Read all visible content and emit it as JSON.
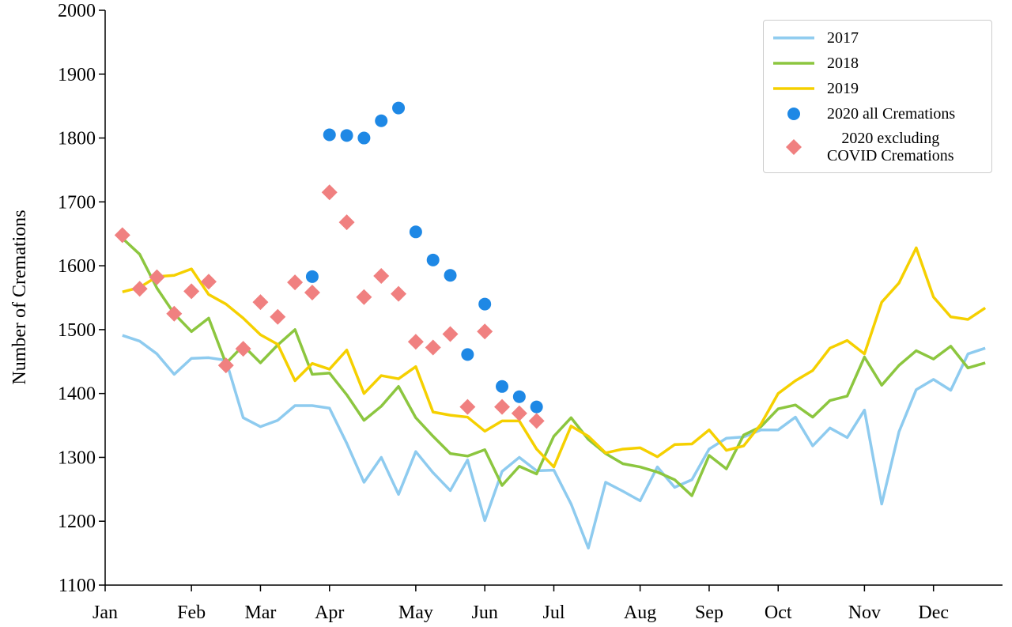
{
  "chart_data": {
    "type": "line",
    "ylabel": "Number of Cremations",
    "xlim": [
      0,
      52
    ],
    "ylim": [
      1100,
      2000
    ],
    "yticks": [
      1100,
      1200,
      1300,
      1400,
      1500,
      1600,
      1700,
      1800,
      1900,
      2000
    ],
    "xticks": [
      {
        "value": 0,
        "label": "Jan"
      },
      {
        "value": 5,
        "label": "Feb"
      },
      {
        "value": 9,
        "label": "Mar"
      },
      {
        "value": 13,
        "label": "Apr"
      },
      {
        "value": 18,
        "label": "May"
      },
      {
        "value": 22,
        "label": "Jun"
      },
      {
        "value": 26,
        "label": "Jul"
      },
      {
        "value": 31,
        "label": "Aug"
      },
      {
        "value": 35,
        "label": "Sep"
      },
      {
        "value": 39,
        "label": "Oct"
      },
      {
        "value": 44,
        "label": "Nov"
      },
      {
        "value": 48,
        "label": "Dec"
      }
    ],
    "legend": "upper right",
    "series": [
      {
        "name": "2017",
        "color": "#8ecbef",
        "style": "line",
        "x": [
          1,
          2,
          3,
          4,
          5,
          6,
          7,
          8,
          9,
          10,
          11,
          12,
          13,
          14,
          15,
          16,
          17,
          18,
          19,
          20,
          21,
          22,
          23,
          24,
          25,
          26,
          27,
          28,
          29,
          30,
          31,
          32,
          33,
          34,
          35,
          36,
          37,
          38,
          39,
          40,
          41,
          42,
          43,
          44,
          45,
          46,
          47,
          48,
          49,
          50,
          51
        ],
        "values": [
          1491,
          1482,
          1462,
          1430,
          1455,
          1456,
          1452,
          1362,
          1348,
          1358,
          1381,
          1381,
          1377,
          1322,
          1261,
          1300,
          1242,
          1309,
          1276,
          1248,
          1296,
          1201,
          1278,
          1300,
          1279,
          1280,
          1227,
          1158,
          1261,
          1247,
          1232,
          1285,
          1253,
          1265,
          1313,
          1330,
          1332,
          1343,
          1343,
          1363,
          1318,
          1346,
          1331,
          1374,
          1227,
          1340,
          1406,
          1422,
          1405,
          1462,
          1471
        ]
      },
      {
        "name": "2018",
        "color": "#8cc63f",
        "style": "line",
        "x": [
          1,
          2,
          3,
          4,
          5,
          6,
          7,
          8,
          9,
          10,
          11,
          12,
          13,
          14,
          15,
          16,
          17,
          18,
          19,
          20,
          21,
          22,
          23,
          24,
          25,
          26,
          27,
          28,
          29,
          30,
          31,
          32,
          33,
          34,
          35,
          36,
          37,
          38,
          39,
          40,
          41,
          42,
          43,
          44,
          45,
          46,
          47,
          48,
          49,
          50,
          51
        ],
        "values": [
          1643,
          1618,
          1565,
          1525,
          1497,
          1518,
          1447,
          1475,
          1448,
          1476,
          1500,
          1430,
          1432,
          1398,
          1358,
          1380,
          1411,
          1362,
          1333,
          1306,
          1302,
          1312,
          1256,
          1286,
          1274,
          1333,
          1362,
          1328,
          1306,
          1290,
          1285,
          1277,
          1265,
          1240,
          1303,
          1282,
          1335,
          1348,
          1376,
          1382,
          1363,
          1389,
          1396,
          1457,
          1413,
          1444,
          1467,
          1454,
          1474,
          1440,
          1448
        ]
      },
      {
        "name": "2019",
        "color": "#f5d000",
        "style": "line",
        "x": [
          1,
          2,
          3,
          4,
          5,
          6,
          7,
          8,
          9,
          10,
          11,
          12,
          13,
          14,
          15,
          16,
          17,
          18,
          19,
          20,
          21,
          22,
          23,
          24,
          25,
          26,
          27,
          28,
          29,
          30,
          31,
          32,
          33,
          34,
          35,
          36,
          37,
          38,
          39,
          40,
          41,
          42,
          43,
          44,
          45,
          46,
          47,
          48,
          49,
          50,
          51
        ],
        "values": [
          1559,
          1566,
          1583,
          1585,
          1595,
          1555,
          1540,
          1518,
          1492,
          1477,
          1420,
          1447,
          1438,
          1468,
          1400,
          1428,
          1423,
          1442,
          1371,
          1366,
          1363,
          1341,
          1357,
          1357,
          1313,
          1285,
          1349,
          1333,
          1307,
          1313,
          1315,
          1301,
          1320,
          1321,
          1343,
          1311,
          1318,
          1352,
          1400,
          1420,
          1436,
          1471,
          1483,
          1462,
          1543,
          1573,
          1628,
          1551,
          1520,
          1516,
          1534
        ]
      },
      {
        "name": "2020 all Cremations",
        "color": "#1e88e5",
        "style": "circle",
        "x": [
          12,
          13,
          14,
          15,
          16,
          17,
          18,
          19,
          20,
          21,
          22,
          23,
          24,
          25
        ],
        "values": [
          1583,
          1805,
          1804,
          1800,
          1827,
          1847,
          1653,
          1609,
          1585,
          1461,
          1540,
          1411,
          1395,
          1379
        ]
      },
      {
        "name": "2020 excluding\nCOVID Cremations",
        "color": "#f08080",
        "style": "diamond",
        "x": [
          1,
          2,
          3,
          4,
          5,
          6,
          7,
          8,
          9,
          10,
          11,
          12,
          13,
          14,
          15,
          16,
          17,
          18,
          19,
          20,
          21,
          22,
          23,
          24,
          25
        ],
        "values": [
          1648,
          1564,
          1582,
          1525,
          1560,
          1575,
          1444,
          1470,
          1543,
          1520,
          1574,
          1558,
          1715,
          1668,
          1551,
          1584,
          1556,
          1481,
          1472,
          1493,
          1379,
          1497,
          1379,
          1369,
          1357
        ]
      }
    ]
  }
}
